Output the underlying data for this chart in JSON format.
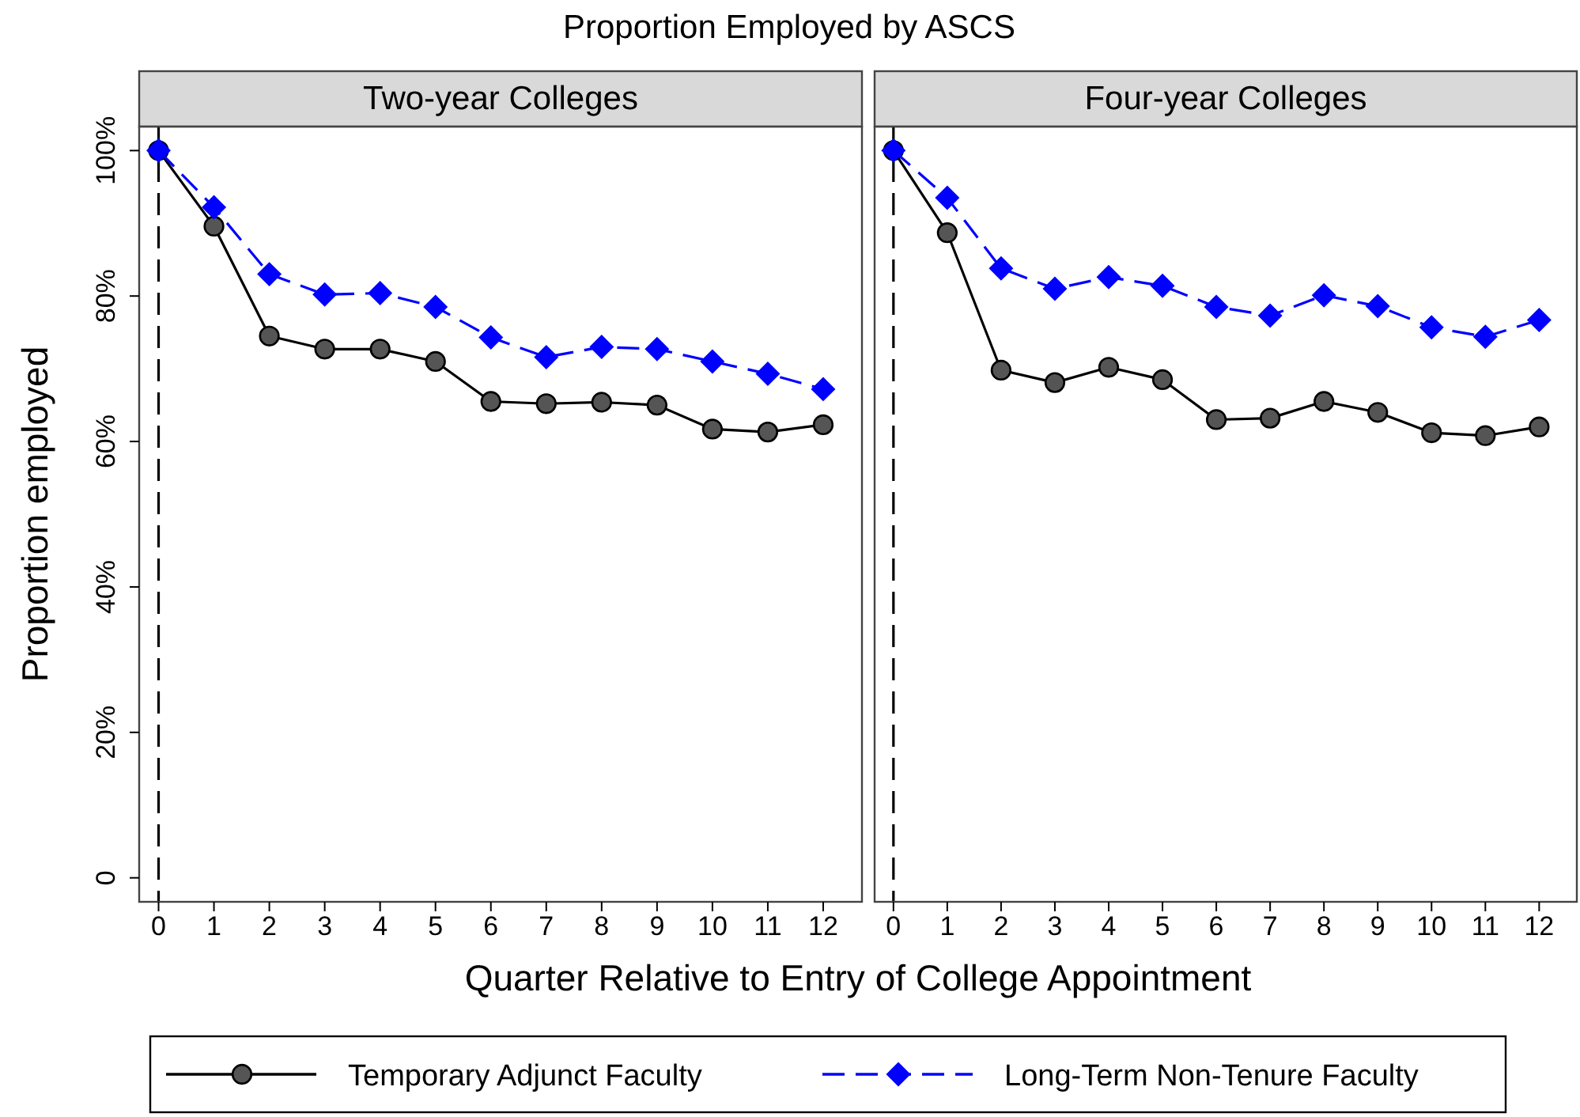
{
  "chart_data": [
    {
      "type": "line",
      "title": "Two-year Colleges",
      "xlabel": "Quarter Relative to Entry of College Appointment",
      "ylabel": "Proportion employed",
      "annotations": [
        "Proportion Employed by ASCS"
      ],
      "x": [
        0,
        1,
        2,
        3,
        4,
        5,
        6,
        7,
        8,
        9,
        10,
        11,
        12
      ],
      "xlim": [
        -0.35,
        12.7
      ],
      "xticks": [
        0,
        1,
        2,
        3,
        4,
        5,
        6,
        7,
        8,
        9,
        10,
        11,
        12
      ],
      "ylim": [
        -3.3,
        103.3
      ],
      "yticks": [
        {
          "value": 0,
          "label": "0"
        },
        {
          "value": 20,
          "label": "20%"
        },
        {
          "value": 40,
          "label": "40%"
        },
        {
          "value": 60,
          "label": "60%"
        },
        {
          "value": 80,
          "label": "80%"
        },
        {
          "value": 100,
          "label": "100%"
        }
      ],
      "grid": false,
      "legend": "bottom",
      "ref_lines": [
        {
          "axis": "x",
          "value": 0,
          "color": "#000000",
          "line_style": "dashed"
        }
      ],
      "series": [
        {
          "name": "Temporary Adjunct Faculty",
          "color": "#000000",
          "marker": "circle",
          "line_style": "solid",
          "values": [
            100,
            89.6,
            74.5,
            72.7,
            72.7,
            71,
            65.5,
            65.2,
            65.4,
            65,
            61.7,
            61.3,
            62.3
          ]
        },
        {
          "name": "Long-Term Non-Tenure Faculty",
          "color": "#0000ff",
          "marker": "diamond",
          "line_style": "dashed",
          "values": [
            100,
            92.2,
            83,
            80.2,
            80.4,
            78.5,
            74.3,
            71.6,
            73,
            72.7,
            71,
            69.3,
            67.2
          ]
        }
      ]
    },
    {
      "type": "line",
      "title": "Four-year Colleges",
      "x": [
        0,
        1,
        2,
        3,
        4,
        5,
        6,
        7,
        8,
        9,
        10,
        11,
        12
      ],
      "xlim": [
        -0.35,
        12.7
      ],
      "xticks": [
        0,
        1,
        2,
        3,
        4,
        5,
        6,
        7,
        8,
        9,
        10,
        11,
        12
      ],
      "ylim": [
        -3.3,
        103.3
      ],
      "tick_labels": "x",
      "grid": false,
      "ref_lines": [
        {
          "axis": "x",
          "value": 0,
          "color": "#000000",
          "line_style": "dashed"
        }
      ],
      "series": [
        {
          "color": "#000000",
          "marker": "circle",
          "line_style": "solid",
          "values": [
            100,
            88.7,
            69.8,
            68.1,
            70.2,
            68.5,
            63,
            63.2,
            65.5,
            64,
            61.2,
            60.8,
            62
          ]
        },
        {
          "color": "#0000ff",
          "marker": "diamond",
          "line_style": "dashed",
          "values": [
            100,
            93.5,
            83.8,
            81,
            82.6,
            81.4,
            78.5,
            77.3,
            80.1,
            78.6,
            75.7,
            74.4,
            76.7
          ]
        }
      ]
    }
  ]
}
